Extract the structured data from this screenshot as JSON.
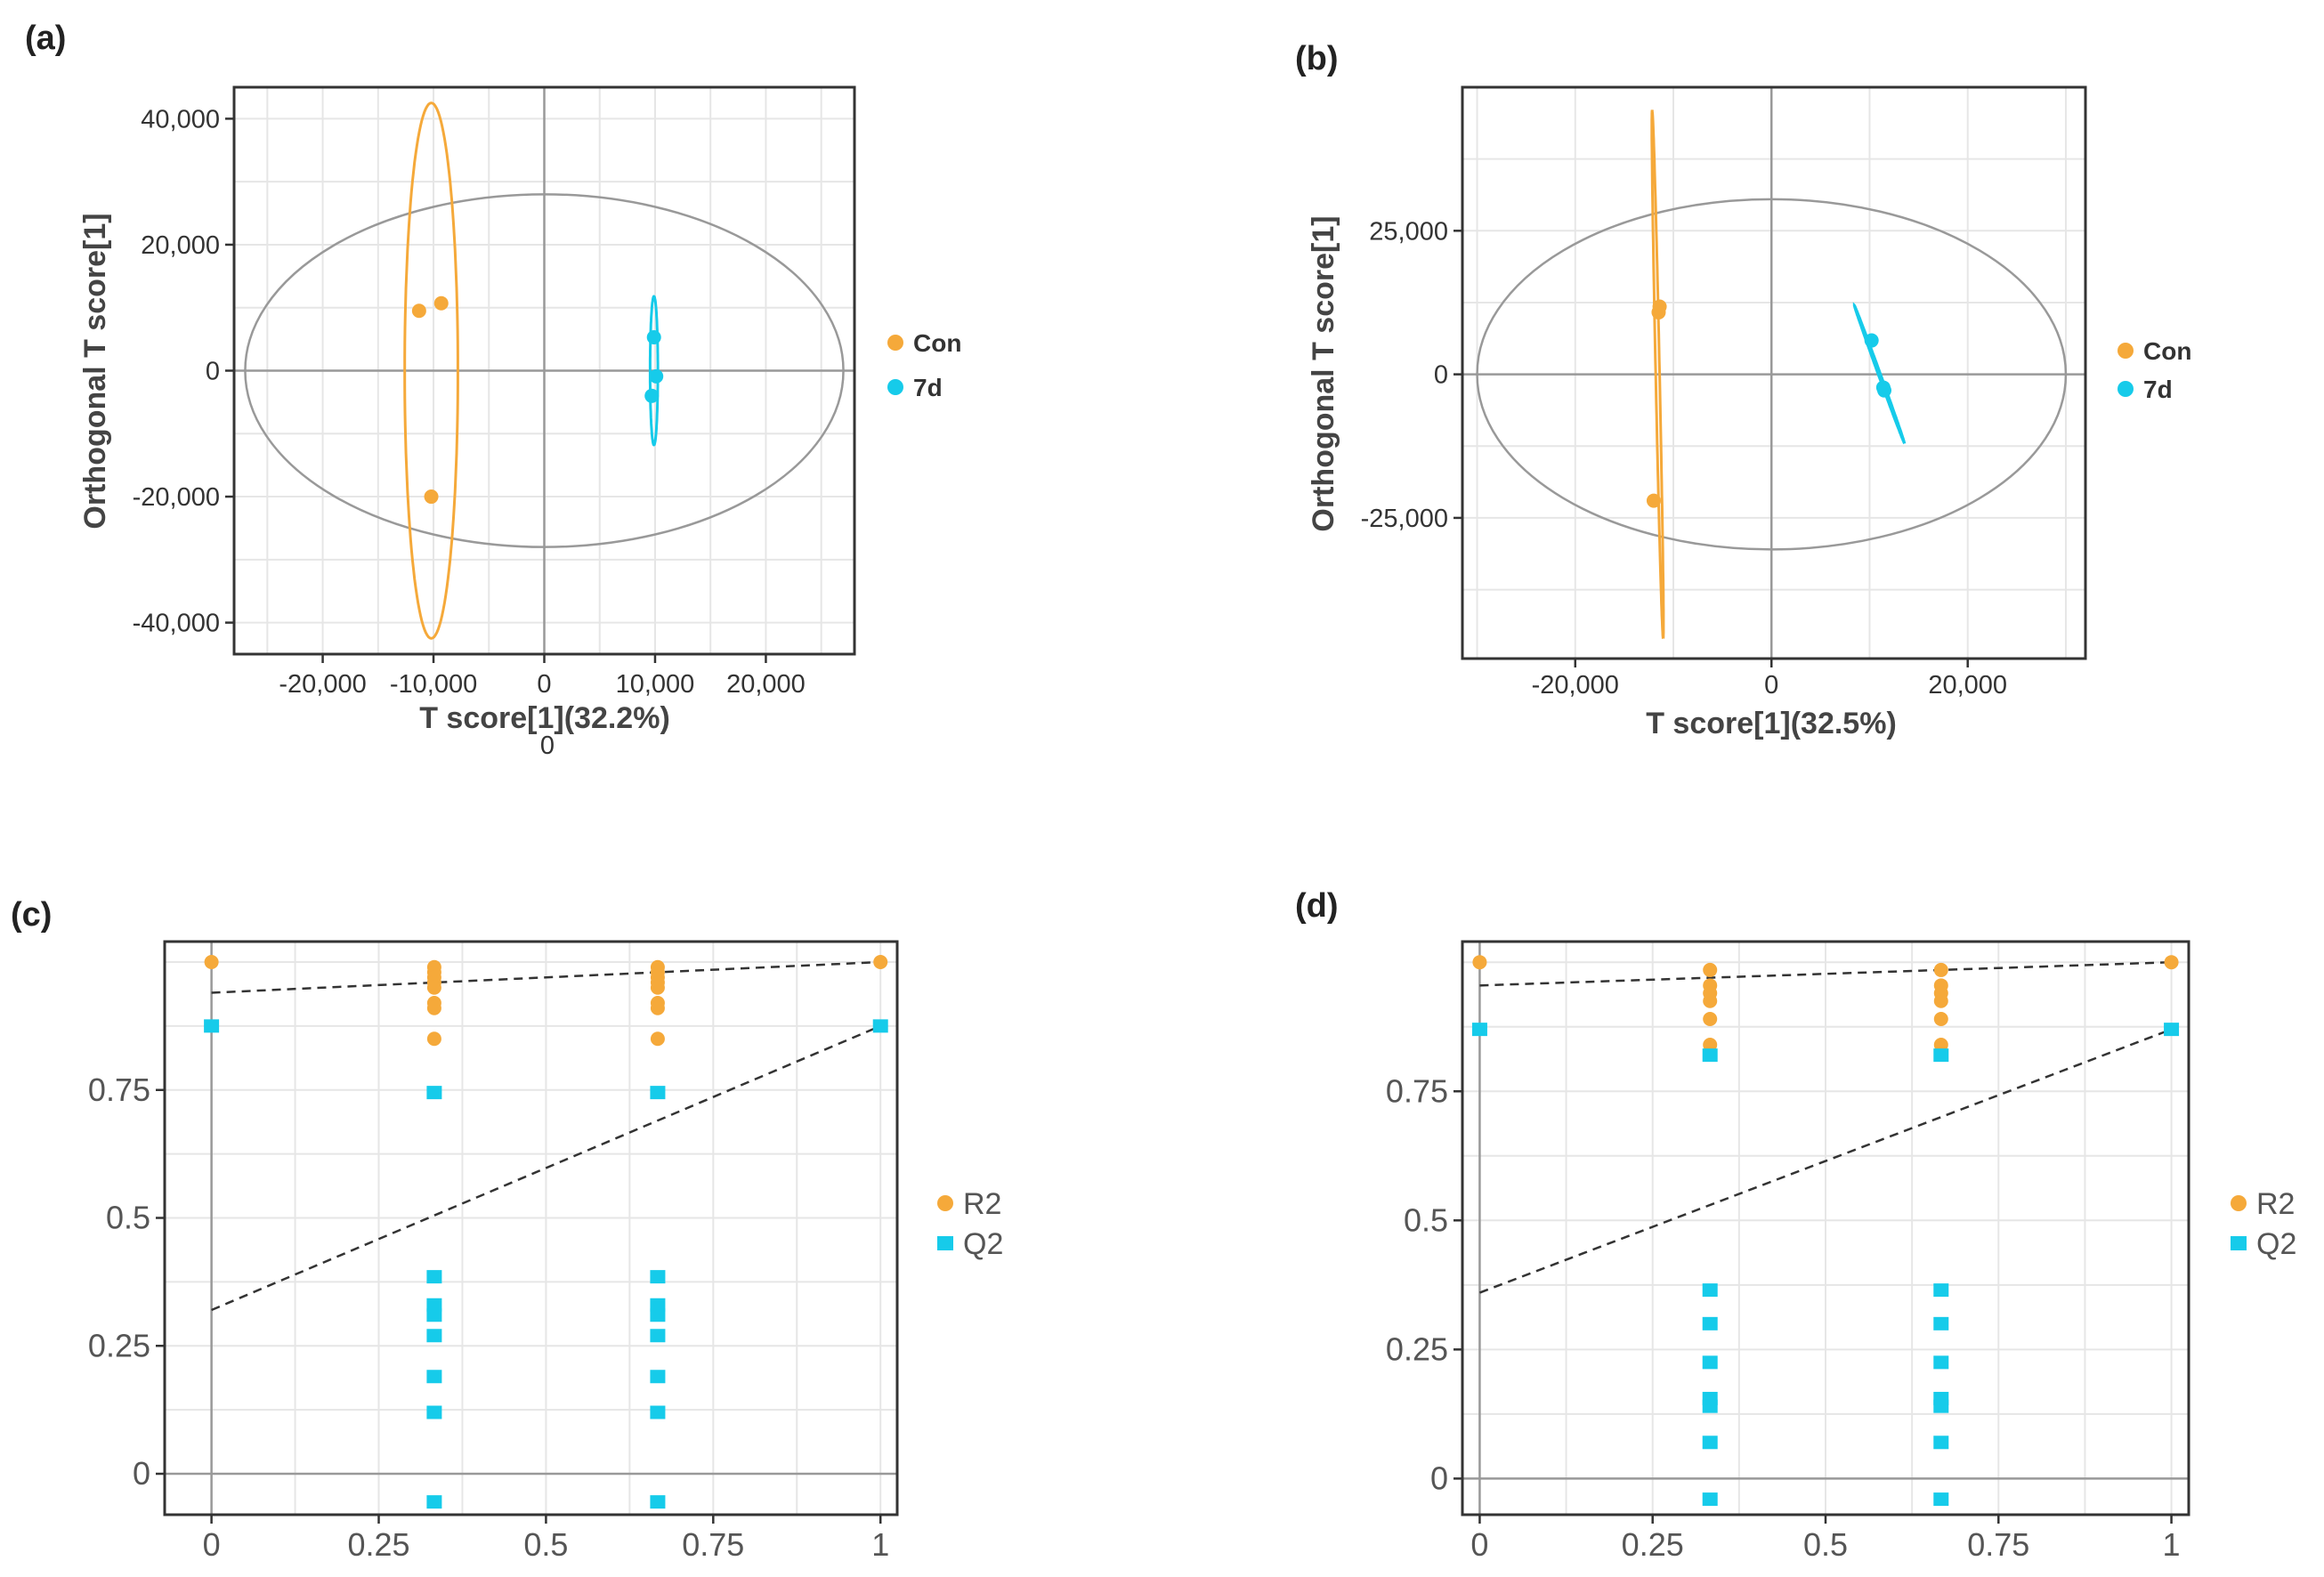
{
  "colors": {
    "con": "#F5A93A",
    "d7": "#16CBEA",
    "grid": "#E6E6E6",
    "frame": "#333333",
    "ellipse": "#999999",
    "zero": "#999999"
  },
  "chart_data": [
    {
      "id": "a",
      "panel_label": "(a)",
      "type": "scatter",
      "xlabel": "T score[1](32.2%)",
      "ylabel": "Orthogonal T score[1]",
      "extra_label": "0",
      "xlim": [
        -28000,
        28000
      ],
      "ylim": [
        -45000,
        45000
      ],
      "xticks": [
        -20000,
        -10000,
        0,
        10000,
        20000
      ],
      "xtick_labels": [
        "-20,000",
        "-10,000",
        "0",
        "10,000",
        "20,000"
      ],
      "yticks": [
        40000,
        20000,
        0,
        -20000,
        -40000
      ],
      "ytick_labels": [
        "40,000",
        "20,000",
        "0",
        "-20,000",
        "-40,000"
      ],
      "hotelling": {
        "rx": 27000,
        "ry": 28000
      },
      "legend": [
        "Con",
        "7d"
      ],
      "series": [
        {
          "name": "Con",
          "color_key": "con",
          "points": [
            [
              -11300,
              9500
            ],
            [
              -9300,
              10700
            ],
            [
              -10200,
              -20000
            ]
          ],
          "ellipse": {
            "cx": -10200,
            "cy": 0,
            "rx": 2400,
            "ry": 42500,
            "angle": 0
          }
        },
        {
          "name": "7d",
          "color_key": "d7",
          "points": [
            [
              9900,
              5300
            ],
            [
              10100,
              -900
            ],
            [
              9700,
              -4000
            ]
          ],
          "ellipse": {
            "cx": 9900,
            "cy": 0,
            "rx": 350,
            "ry": 11800,
            "angle": 0
          }
        }
      ]
    },
    {
      "id": "b",
      "panel_label": "(b)",
      "type": "scatter",
      "xlabel": "T score[1](32.5%)",
      "ylabel": "Orthogonal T score[1]",
      "xlim": [
        -31500,
        32000
      ],
      "ylim": [
        -49500,
        50000
      ],
      "xticks": [
        -20000,
        0,
        20000
      ],
      "xtick_labels": [
        "-20,000",
        "0",
        "20,000"
      ],
      "yticks": [
        25000,
        0,
        -25000
      ],
      "ytick_labels": [
        "25,000",
        "0",
        "-25,000"
      ],
      "hotelling": {
        "rx": 30000,
        "ry": 30500
      },
      "legend": [
        "Con",
        "7d"
      ],
      "series": [
        {
          "name": "Con",
          "color_key": "con",
          "points": [
            [
              -11400,
              11800
            ],
            [
              -11500,
              10800
            ],
            [
              -12000,
              -22000
            ]
          ],
          "ellipse": {
            "cx": -11600,
            "cy": 0,
            "rx": 46000,
            "ry": 200,
            "angle": -89.3
          }
        },
        {
          "name": "7d",
          "color_key": "d7",
          "points": [
            [
              10200,
              5900
            ],
            [
              11400,
              -2300
            ],
            [
              11500,
              -2800
            ]
          ],
          "ellipse": {
            "cx": 11000,
            "cy": 0,
            "rx": 12300,
            "ry": 120,
            "angle": -78
          }
        }
      ]
    },
    {
      "id": "c",
      "panel_label": "(c)",
      "type": "scatter",
      "xlabel": "",
      "ylabel": "",
      "xlim": [
        -0.07,
        1.025
      ],
      "ylim": [
        -0.08,
        1.04
      ],
      "xticks": [
        0,
        0.25,
        0.5,
        0.75,
        1
      ],
      "xtick_labels": [
        "0",
        "0.25",
        "0.5",
        "0.75",
        "1"
      ],
      "yticks": [
        0,
        0.25,
        0.5,
        0.75
      ],
      "ytick_labels": [
        "0",
        "0.25",
        "0.5",
        "0.75"
      ],
      "legend": [
        "R2",
        "Q2"
      ],
      "series": [
        {
          "name": "R2",
          "color_key": "con",
          "marker": "circle",
          "points": [
            [
              0,
              1.0
            ],
            [
              0.333,
              0.99
            ],
            [
              0.333,
              0.98
            ],
            [
              0.333,
              0.97
            ],
            [
              0.333,
              0.96
            ],
            [
              0.333,
              0.95
            ],
            [
              0.333,
              0.92
            ],
            [
              0.333,
              0.91
            ],
            [
              0.333,
              0.85
            ],
            [
              0.667,
              0.99
            ],
            [
              0.667,
              0.98
            ],
            [
              0.667,
              0.97
            ],
            [
              0.667,
              0.96
            ],
            [
              0.667,
              0.95
            ],
            [
              0.667,
              0.92
            ],
            [
              0.667,
              0.91
            ],
            [
              0.667,
              0.85
            ],
            [
              1,
              1.0
            ]
          ],
          "regression": [
            [
              0,
              0.94
            ],
            [
              1,
              1.0
            ]
          ]
        },
        {
          "name": "Q2",
          "color_key": "d7",
          "marker": "square",
          "points": [
            [
              0,
              0.875
            ],
            [
              0.333,
              0.745
            ],
            [
              0.333,
              0.385
            ],
            [
              0.333,
              0.33
            ],
            [
              0.333,
              0.31
            ],
            [
              0.333,
              0.27
            ],
            [
              0.333,
              0.19
            ],
            [
              0.333,
              0.12
            ],
            [
              0.333,
              -0.055
            ],
            [
              0.667,
              0.745
            ],
            [
              0.667,
              0.385
            ],
            [
              0.667,
              0.33
            ],
            [
              0.667,
              0.31
            ],
            [
              0.667,
              0.27
            ],
            [
              0.667,
              0.19
            ],
            [
              0.667,
              0.12
            ],
            [
              0.667,
              -0.055
            ],
            [
              1,
              0.875
            ]
          ],
          "regression": [
            [
              0,
              0.32
            ],
            [
              1,
              0.875
            ]
          ]
        }
      ]
    },
    {
      "id": "d",
      "panel_label": "(d)",
      "type": "scatter",
      "xlabel": "",
      "ylabel": "",
      "xlim": [
        -0.025,
        1.025
      ],
      "ylim": [
        -0.07,
        1.04
      ],
      "xticks": [
        0,
        0.25,
        0.5,
        0.75,
        1
      ],
      "xtick_labels": [
        "0",
        "0.25",
        "0.5",
        "0.75",
        "1"
      ],
      "yticks": [
        0,
        0.25,
        0.5,
        0.75
      ],
      "ytick_labels": [
        "0",
        "0.25",
        "0.5",
        "0.75"
      ],
      "legend": [
        "R2",
        "Q2"
      ],
      "series": [
        {
          "name": "R2",
          "color_key": "con",
          "marker": "circle",
          "points": [
            [
              0,
              1.0
            ],
            [
              0.333,
              0.985
            ],
            [
              0.333,
              0.955
            ],
            [
              0.333,
              0.94
            ],
            [
              0.333,
              0.925
            ],
            [
              0.333,
              0.89
            ],
            [
              0.333,
              0.84
            ],
            [
              0.667,
              0.985
            ],
            [
              0.667,
              0.955
            ],
            [
              0.667,
              0.94
            ],
            [
              0.667,
              0.925
            ],
            [
              0.667,
              0.89
            ],
            [
              0.667,
              0.84
            ],
            [
              1,
              1.0
            ]
          ],
          "regression": [
            [
              0,
              0.955
            ],
            [
              1,
              1.0
            ]
          ]
        },
        {
          "name": "Q2",
          "color_key": "d7",
          "marker": "square",
          "points": [
            [
              0,
              0.87
            ],
            [
              0.333,
              0.82
            ],
            [
              0.333,
              0.365
            ],
            [
              0.333,
              0.3
            ],
            [
              0.333,
              0.225
            ],
            [
              0.333,
              0.155
            ],
            [
              0.333,
              0.14
            ],
            [
              0.333,
              0.07
            ],
            [
              0.333,
              -0.04
            ],
            [
              0.667,
              0.82
            ],
            [
              0.667,
              0.365
            ],
            [
              0.667,
              0.3
            ],
            [
              0.667,
              0.225
            ],
            [
              0.667,
              0.155
            ],
            [
              0.667,
              0.14
            ],
            [
              0.667,
              0.07
            ],
            [
              0.667,
              -0.04
            ],
            [
              1,
              0.87
            ]
          ],
          "regression": [
            [
              0,
              0.36
            ],
            [
              1,
              0.87
            ]
          ]
        }
      ]
    }
  ]
}
